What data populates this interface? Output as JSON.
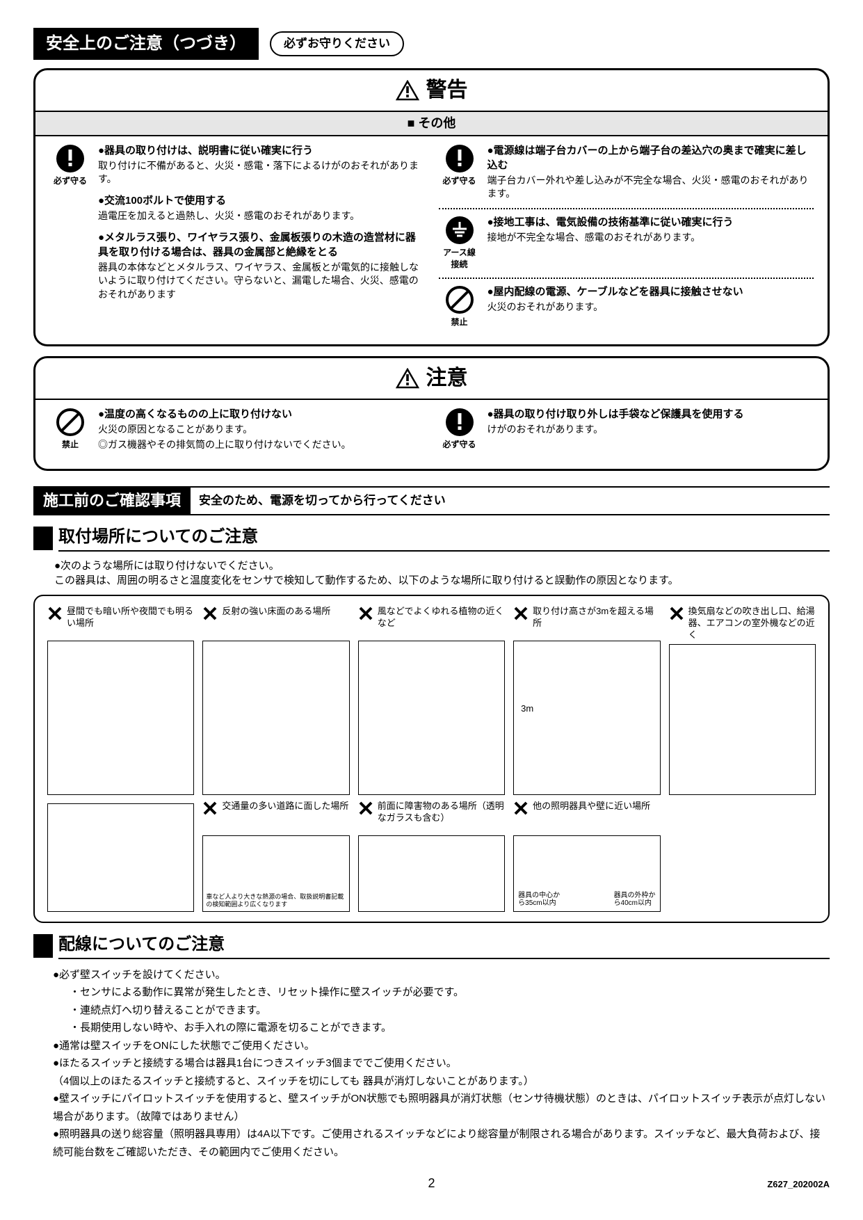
{
  "colors": {
    "text": "#000000",
    "bg": "#ffffff",
    "subtitle_bg": "#e6e6e6",
    "illus_placeholder": "#666666"
  },
  "header": {
    "title": "安全上のご注意（つづき）",
    "pill": "必ずお守りください"
  },
  "warning_box": {
    "title": "警告",
    "subtitle": "■ その他",
    "icon_labels": {
      "must": "必ず守る",
      "earth": "アース線\n接続",
      "prohibit": "禁止"
    },
    "left": [
      {
        "bold": "●器具の取り付けは、説明書に従い確実に行う",
        "desc": "取り付けに不備があると、火災・感電・落下によるけがのおそれがあります。"
      },
      {
        "bold": "●交流100ボルトで使用する",
        "desc": "過電圧を加えると過熱し、火災・感電のおそれがあります。"
      },
      {
        "bold": "●メタルラス張り、ワイヤラス張り、金属板張りの木造の造営材に器具を取り付ける場合は、器具の金属部と絶縁をとる",
        "desc": "器具の本体などとメタルラス、ワイヤラス、金属板とが電気的に接触しないように取り付けてください。守らないと、漏電した場合、火災、感電のおそれがあります"
      }
    ],
    "right": [
      {
        "icon": "must",
        "bold": "●電源線は端子台カバーの上から端子台の差込穴の奥まで確実に差し込む",
        "desc": "端子台カバー外れや差し込みが不完全な場合、火災・感電のおそれがあります。"
      },
      {
        "icon": "earth",
        "bold": "●接地工事は、電気設備の技術基準に従い確実に行う",
        "desc": "接地が不完全な場合、感電のおそれがあります。"
      },
      {
        "icon": "prohibit",
        "bold": "●屋内配線の電源、ケーブルなどを器具に接触させない",
        "desc": "火災のおそれがあります。"
      }
    ]
  },
  "caution_box": {
    "title": "注意",
    "left": {
      "icon": "prohibit",
      "bold": "●温度の高くなるものの上に取り付けない",
      "desc1": "火災の原因となることがあります。",
      "desc2": "◎ガス機器やその排気筒の上に取り付けないでください。"
    },
    "right": {
      "icon": "must",
      "bold": "●器具の取り付け取り外しは手袋など保護具を使用する",
      "desc": "けがのおそれがあります。"
    }
  },
  "pre_construction": {
    "title": "施工前のご確認事項",
    "note": "安全のため、電源を切ってから行ってください"
  },
  "location_section": {
    "heading": "取付場所についてのご注意",
    "intro1": "●次のような場所には取り付けないでください。",
    "intro2": "この器具は、周囲の明るさと温度変化をセンサで検知して動作するため、以下のような場所に取り付けると誤動作の原因となります。",
    "cells": [
      {
        "label": "昼間でも暗い所や夜間でも明るい場所"
      },
      {
        "label": "反射の強い床面のある場所"
      },
      {
        "label": "風などでよくゆれる植物の近くなど"
      },
      {
        "label": "取り付け高さが3mを超える場所",
        "annot": "3m"
      },
      {
        "label": "換気扇などの吹き出し口、給湯器、エアコンの室外機などの近く"
      },
      {
        "label": "",
        "lower": true
      },
      {
        "label": "交通量の多い道路に面した場所",
        "note": "車など人より大きな熱源の場合、取扱説明書記載の検知範囲より広くなります",
        "lower": true
      },
      {
        "label": "前面に障害物のある場所（透明なガラスも含む）",
        "lower": true
      },
      {
        "label": "他の照明器具や壁に近い場所",
        "annot1": "器具の中心から35cm以内",
        "annot2": "器具の外枠から40cm以内",
        "lower": true
      },
      {
        "label": "",
        "lower": true
      }
    ]
  },
  "wiring_section": {
    "heading": "配線についてのご注意",
    "items": [
      "●必ず壁スイッチを設けてください。",
      "・センサによる動作に異常が発生したとき、リセット操作に壁スイッチが必要です。",
      "・連続点灯へ切り替えることができます。",
      "・長期使用しない時や、お手入れの際に電源を切ることができます。",
      "●通常は壁スイッチをONにした状態でご使用ください。",
      "●ほたるスイッチと接続する場合は器具1台につきスイッチ3個まででご使用ください。",
      "（4個以上のほたるスイッチと接続すると、スイッチを切にしても 器具が消灯しないことがあります。）",
      "●壁スイッチにパイロットスイッチを使用すると、壁スイッチがON状態でも照明器具が消灯状態（センサ待機状態）のときは、パイロットスイッチ表示が点灯しない場合があります。（故障ではありません）",
      "●照明器具の送り総容量（照明器具専用）は4A以下です。ご使用されるスイッチなどにより総容量が制限される場合があります。スイッチなど、最大負荷および、接続可能台数をご確認いただき、その範囲内でご使用ください。"
    ],
    "sub_flags": [
      false,
      true,
      true,
      true,
      false,
      false,
      false,
      false,
      false
    ]
  },
  "footer": {
    "page": "2",
    "code": "Z627_202002A"
  }
}
